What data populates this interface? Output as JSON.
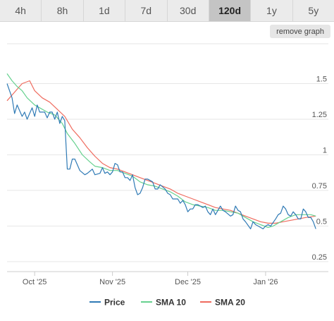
{
  "range_selector": {
    "options": [
      {
        "label": "4h",
        "active": false
      },
      {
        "label": "8h",
        "active": false
      },
      {
        "label": "1d",
        "active": false
      },
      {
        "label": "7d",
        "active": false
      },
      {
        "label": "30d",
        "active": false
      },
      {
        "label": "120d",
        "active": true
      },
      {
        "label": "1y",
        "active": false
      },
      {
        "label": "5y",
        "active": false
      }
    ]
  },
  "remove_graph_label": "remove graph",
  "chart_data": {
    "type": "line",
    "x_axis": {
      "type": "date",
      "range": [
        "2025-09-20",
        "2026-01-26"
      ],
      "ticks": [
        {
          "date": "2025-10-01",
          "label": "Oct '25"
        },
        {
          "date": "2025-11-01",
          "label": "Nov '25"
        },
        {
          "date": "2025-12-01",
          "label": "Dec '25"
        },
        {
          "date": "2026-01-01",
          "label": "Jan '26"
        }
      ]
    },
    "y_axis": {
      "range": [
        0.18,
        1.78
      ],
      "ticks": [
        {
          "value": 1.5,
          "label": "1.5"
        },
        {
          "value": 1.25,
          "label": "1.25"
        },
        {
          "value": 1.0,
          "label": "1"
        },
        {
          "value": 0.75,
          "label": "0.75"
        },
        {
          "value": 0.5,
          "label": "0.5"
        },
        {
          "value": 0.25,
          "label": "0.25"
        }
      ],
      "side": "right"
    },
    "grid": "horizontal",
    "legend_position": "bottom",
    "series": [
      {
        "name": "Price",
        "color": "#2f7ab5",
        "points": [
          [
            "2025-09-20",
            1.5
          ],
          [
            "2025-09-22",
            1.4
          ],
          [
            "2025-09-23",
            1.29
          ],
          [
            "2025-09-24",
            1.35
          ],
          [
            "2025-09-26",
            1.27
          ],
          [
            "2025-09-27",
            1.3
          ],
          [
            "2025-09-28",
            1.25
          ],
          [
            "2025-09-30",
            1.33
          ],
          [
            "2025-10-01",
            1.27
          ],
          [
            "2025-10-02",
            1.35
          ],
          [
            "2025-10-03",
            1.3
          ],
          [
            "2025-10-05",
            1.3
          ],
          [
            "2025-10-06",
            1.26
          ],
          [
            "2025-10-07",
            1.3
          ],
          [
            "2025-10-08",
            1.3
          ],
          [
            "2025-10-09",
            1.25
          ],
          [
            "2025-10-10",
            1.3
          ],
          [
            "2025-10-11",
            1.22
          ],
          [
            "2025-10-12",
            1.27
          ],
          [
            "2025-10-13",
            1.24
          ],
          [
            "2025-10-14",
            0.9
          ],
          [
            "2025-10-15",
            0.9
          ],
          [
            "2025-10-16",
            0.97
          ],
          [
            "2025-10-17",
            0.97
          ],
          [
            "2025-10-18",
            0.93
          ],
          [
            "2025-10-19",
            0.89
          ],
          [
            "2025-10-21",
            0.86
          ],
          [
            "2025-10-22",
            0.87
          ],
          [
            "2025-10-24",
            0.9
          ],
          [
            "2025-10-25",
            0.86
          ],
          [
            "2025-10-27",
            0.87
          ],
          [
            "2025-10-28",
            0.91
          ],
          [
            "2025-10-29",
            0.87
          ],
          [
            "2025-10-30",
            0.88
          ],
          [
            "2025-10-31",
            0.86
          ],
          [
            "2025-11-01",
            0.88
          ],
          [
            "2025-11-02",
            0.94
          ],
          [
            "2025-11-03",
            0.93
          ],
          [
            "2025-11-04",
            0.88
          ],
          [
            "2025-11-05",
            0.88
          ],
          [
            "2025-11-06",
            0.84
          ],
          [
            "2025-11-07",
            0.84
          ],
          [
            "2025-11-08",
            0.82
          ],
          [
            "2025-11-09",
            0.86
          ],
          [
            "2025-11-10",
            0.77
          ],
          [
            "2025-11-11",
            0.72
          ],
          [
            "2025-11-12",
            0.73
          ],
          [
            "2025-11-13",
            0.77
          ],
          [
            "2025-11-14",
            0.83
          ],
          [
            "2025-11-15",
            0.83
          ],
          [
            "2025-11-16",
            0.82
          ],
          [
            "2025-11-17",
            0.81
          ],
          [
            "2025-11-18",
            0.76
          ],
          [
            "2025-11-19",
            0.76
          ],
          [
            "2025-11-20",
            0.79
          ],
          [
            "2025-11-22",
            0.76
          ],
          [
            "2025-11-23",
            0.73
          ],
          [
            "2025-11-24",
            0.72
          ],
          [
            "2025-11-25",
            0.69
          ],
          [
            "2025-11-27",
            0.69
          ],
          [
            "2025-11-28",
            0.66
          ],
          [
            "2025-11-29",
            0.68
          ],
          [
            "2025-11-30",
            0.65
          ],
          [
            "2025-12-01",
            0.6
          ],
          [
            "2025-12-02",
            0.62
          ],
          [
            "2025-12-03",
            0.62
          ],
          [
            "2025-12-04",
            0.65
          ],
          [
            "2025-12-05",
            0.65
          ],
          [
            "2025-12-07",
            0.63
          ],
          [
            "2025-12-08",
            0.64
          ],
          [
            "2025-12-09",
            0.6
          ],
          [
            "2025-12-10",
            0.58
          ],
          [
            "2025-12-11",
            0.62
          ],
          [
            "2025-12-12",
            0.58
          ],
          [
            "2025-12-14",
            0.64
          ],
          [
            "2025-12-15",
            0.61
          ],
          [
            "2025-12-16",
            0.6
          ],
          [
            "2025-12-18",
            0.57
          ],
          [
            "2025-12-19",
            0.58
          ],
          [
            "2025-12-20",
            0.64
          ],
          [
            "2025-12-21",
            0.61
          ],
          [
            "2025-12-22",
            0.6
          ],
          [
            "2025-12-23",
            0.55
          ],
          [
            "2025-12-24",
            0.53
          ],
          [
            "2025-12-26",
            0.48
          ],
          [
            "2025-12-27",
            0.53
          ],
          [
            "2025-12-28",
            0.51
          ],
          [
            "2025-12-29",
            0.5
          ],
          [
            "2025-12-30",
            0.49
          ],
          [
            "2025-12-31",
            0.48
          ],
          [
            "2026-01-01",
            0.5
          ],
          [
            "2026-01-02",
            0.51
          ],
          [
            "2026-01-03",
            0.5
          ],
          [
            "2026-01-05",
            0.55
          ],
          [
            "2026-01-06",
            0.58
          ],
          [
            "2026-01-07",
            0.59
          ],
          [
            "2026-01-08",
            0.64
          ],
          [
            "2026-01-09",
            0.62
          ],
          [
            "2026-01-10",
            0.58
          ],
          [
            "2026-01-11",
            0.57
          ],
          [
            "2026-01-12",
            0.6
          ],
          [
            "2026-01-13",
            0.58
          ],
          [
            "2026-01-14",
            0.55
          ],
          [
            "2026-01-15",
            0.55
          ],
          [
            "2026-01-16",
            0.62
          ],
          [
            "2026-01-17",
            0.6
          ],
          [
            "2026-01-18",
            0.56
          ],
          [
            "2026-01-19",
            0.56
          ],
          [
            "2026-01-20",
            0.53
          ],
          [
            "2026-01-21",
            0.48
          ]
        ]
      },
      {
        "name": "SMA 10",
        "color": "#66d18f",
        "points": [
          [
            "2025-09-20",
            1.57
          ],
          [
            "2025-09-22",
            1.52
          ],
          [
            "2025-09-24",
            1.48
          ],
          [
            "2025-09-26",
            1.45
          ],
          [
            "2025-09-28",
            1.4
          ],
          [
            "2025-10-01",
            1.35
          ],
          [
            "2025-10-03",
            1.33
          ],
          [
            "2025-10-06",
            1.3
          ],
          [
            "2025-10-09",
            1.28
          ],
          [
            "2025-10-12",
            1.22
          ],
          [
            "2025-10-14",
            1.15
          ],
          [
            "2025-10-17",
            1.08
          ],
          [
            "2025-10-20",
            1.0
          ],
          [
            "2025-10-23",
            0.95
          ],
          [
            "2025-10-25",
            0.92
          ],
          [
            "2025-10-28",
            0.91
          ],
          [
            "2025-10-31",
            0.89
          ],
          [
            "2025-11-03",
            0.89
          ],
          [
            "2025-11-06",
            0.87
          ],
          [
            "2025-11-09",
            0.85
          ],
          [
            "2025-11-12",
            0.81
          ],
          [
            "2025-11-15",
            0.79
          ],
          [
            "2025-11-18",
            0.78
          ],
          [
            "2025-11-21",
            0.76
          ],
          [
            "2025-11-24",
            0.74
          ],
          [
            "2025-11-27",
            0.71
          ],
          [
            "2025-11-30",
            0.67
          ],
          [
            "2025-12-03",
            0.65
          ],
          [
            "2025-12-06",
            0.64
          ],
          [
            "2025-12-09",
            0.63
          ],
          [
            "2025-12-12",
            0.61
          ],
          [
            "2025-12-15",
            0.61
          ],
          [
            "2025-12-18",
            0.6
          ],
          [
            "2025-12-21",
            0.59
          ],
          [
            "2025-12-24",
            0.56
          ],
          [
            "2025-12-27",
            0.53
          ],
          [
            "2025-12-30",
            0.51
          ],
          [
            "2026-01-02",
            0.49
          ],
          [
            "2026-01-04",
            0.5
          ],
          [
            "2026-01-07",
            0.53
          ],
          [
            "2026-01-10",
            0.56
          ],
          [
            "2026-01-13",
            0.58
          ],
          [
            "2026-01-16",
            0.58
          ],
          [
            "2026-01-19",
            0.58
          ],
          [
            "2026-01-21",
            0.57
          ]
        ]
      },
      {
        "name": "SMA 20",
        "color": "#ef6b5e",
        "points": [
          [
            "2025-09-20",
            1.38
          ],
          [
            "2025-09-23",
            1.44
          ],
          [
            "2025-09-26",
            1.5
          ],
          [
            "2025-09-29",
            1.52
          ],
          [
            "2025-10-01",
            1.45
          ],
          [
            "2025-10-04",
            1.4
          ],
          [
            "2025-10-07",
            1.37
          ],
          [
            "2025-10-10",
            1.32
          ],
          [
            "2025-10-13",
            1.27
          ],
          [
            "2025-10-16",
            1.18
          ],
          [
            "2025-10-19",
            1.12
          ],
          [
            "2025-10-22",
            1.05
          ],
          [
            "2025-10-25",
            0.99
          ],
          [
            "2025-10-28",
            0.94
          ],
          [
            "2025-10-31",
            0.91
          ],
          [
            "2025-11-03",
            0.9
          ],
          [
            "2025-11-06",
            0.88
          ],
          [
            "2025-11-09",
            0.86
          ],
          [
            "2025-11-12",
            0.84
          ],
          [
            "2025-11-15",
            0.82
          ],
          [
            "2025-11-18",
            0.8
          ],
          [
            "2025-11-21",
            0.78
          ],
          [
            "2025-11-24",
            0.76
          ],
          [
            "2025-11-27",
            0.73
          ],
          [
            "2025-11-30",
            0.71
          ],
          [
            "2025-12-03",
            0.69
          ],
          [
            "2025-12-06",
            0.67
          ],
          [
            "2025-12-09",
            0.65
          ],
          [
            "2025-12-12",
            0.63
          ],
          [
            "2025-12-15",
            0.62
          ],
          [
            "2025-12-18",
            0.61
          ],
          [
            "2025-12-21",
            0.59
          ],
          [
            "2025-12-24",
            0.57
          ],
          [
            "2025-12-27",
            0.55
          ],
          [
            "2025-12-30",
            0.53
          ],
          [
            "2026-01-02",
            0.52
          ],
          [
            "2026-01-05",
            0.52
          ],
          [
            "2026-01-08",
            0.53
          ],
          [
            "2026-01-11",
            0.54
          ],
          [
            "2026-01-14",
            0.55
          ],
          [
            "2026-01-17",
            0.56
          ],
          [
            "2026-01-21",
            0.57
          ]
        ]
      }
    ]
  }
}
